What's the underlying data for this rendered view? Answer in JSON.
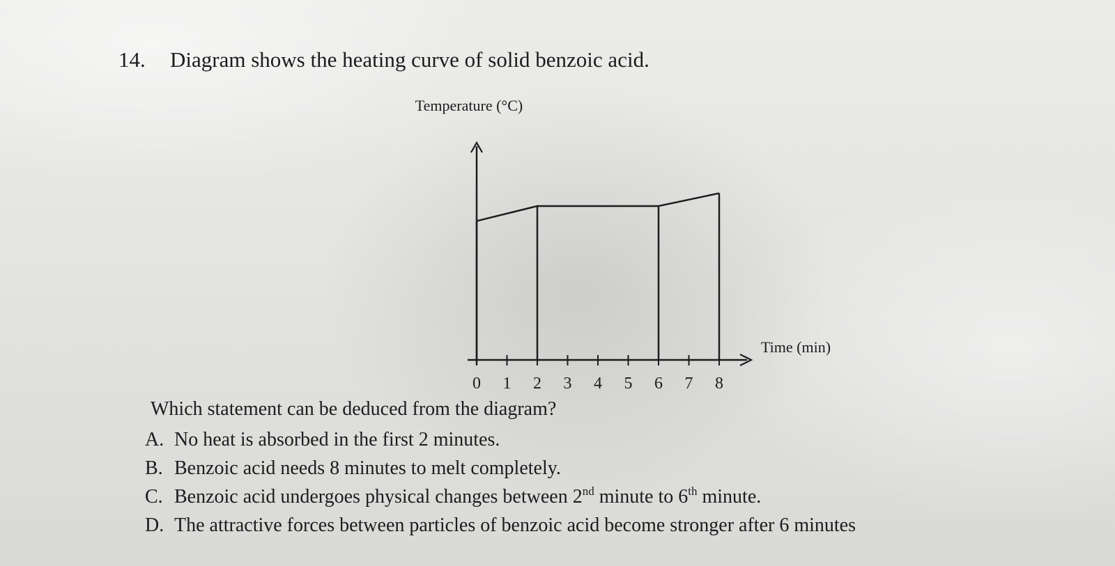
{
  "question": {
    "number": "14.",
    "text": "Diagram shows the heating curve of solid benzoic acid."
  },
  "chart_data": {
    "type": "line",
    "ylabel": "Temperature (°C)",
    "xlabel": "Time (min)",
    "x_ticks": [
      "0",
      "1",
      "2",
      "3",
      "4",
      "5",
      "6",
      "7",
      "8"
    ],
    "y_ticks_shown": false,
    "series": [
      {
        "points": [
          {
            "x": 0,
            "y": 0.65
          },
          {
            "x": 2,
            "y": 0.72
          },
          {
            "x": 6,
            "y": 0.72
          },
          {
            "x": 8,
            "y": 0.78
          }
        ]
      }
    ],
    "vertical_markers": [
      0,
      2,
      6,
      8
    ],
    "xlim": [
      0,
      9
    ],
    "ylim": [
      0,
      1
    ],
    "grid": false
  },
  "prompt": "Which statement can be deduced from the diagram?",
  "options": [
    {
      "letter": "A.",
      "text": "No heat is absorbed in the first 2 minutes."
    },
    {
      "letter": "B.",
      "text": "Benzoic acid needs 8 minutes to melt completely."
    },
    {
      "letter": "C.",
      "text_before": "Benzoic acid undergoes physical changes between 2",
      "sup1": "nd",
      "text_mid": " minute to 6",
      "sup2": "th",
      "text_after": " minute."
    },
    {
      "letter": "D.",
      "text": "The attractive forces between particles of benzoic acid become stronger after 6 minutes"
    }
  ],
  "colors": {
    "ink": "#1c1c1c",
    "paper": "#e6e6e4"
  }
}
